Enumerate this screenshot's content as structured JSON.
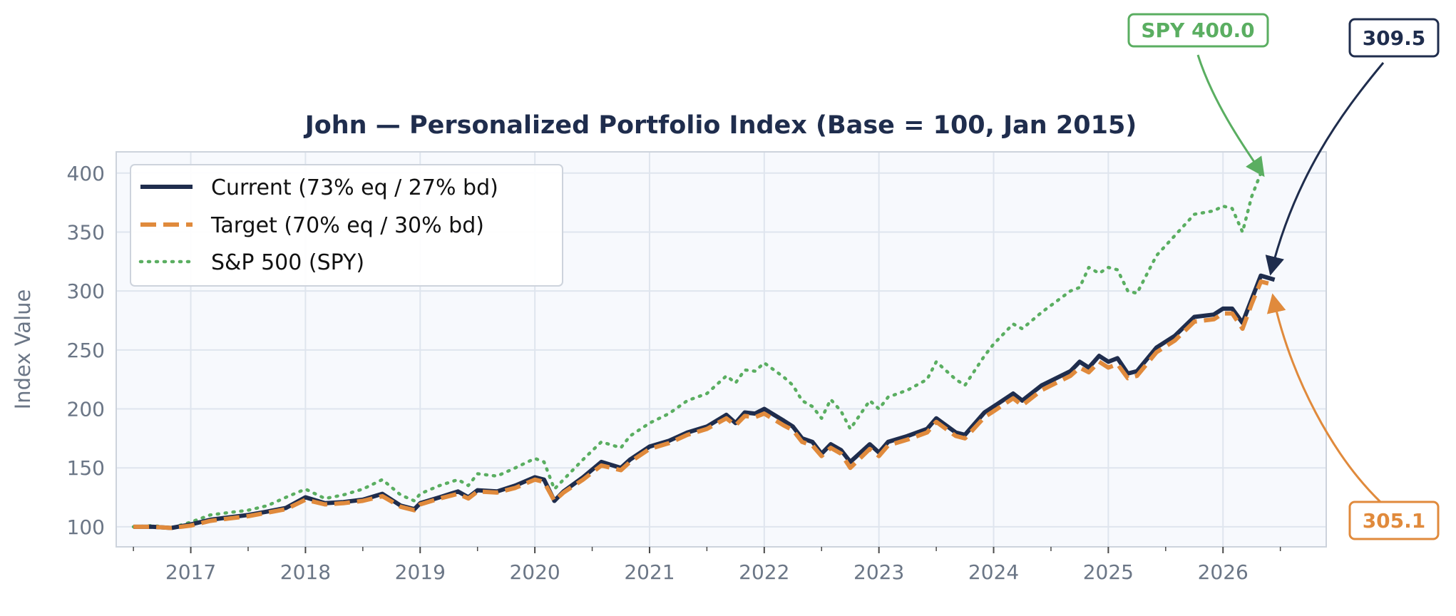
{
  "chart_data": {
    "type": "line",
    "title": "John — Personalized Portfolio Index  (Base = 100, Jan 2015)",
    "xlabel": "",
    "ylabel": "Index Value",
    "xlim": [
      2016.35,
      2026.9
    ],
    "ylim": [
      83,
      418
    ],
    "x_ticks": [
      {
        "label": "2017",
        "value": 2017
      },
      {
        "label": "2018",
        "value": 2018
      },
      {
        "label": "2019",
        "value": 2019
      },
      {
        "label": "2020",
        "value": 2020
      },
      {
        "label": "2021",
        "value": 2021
      },
      {
        "label": "2022",
        "value": 2022
      },
      {
        "label": "2023",
        "value": 2023
      },
      {
        "label": "2024",
        "value": 2024
      },
      {
        "label": "2025",
        "value": 2025
      },
      {
        "label": "2026",
        "value": 2026
      }
    ],
    "y_ticks": [
      {
        "label": "100",
        "value": 100
      },
      {
        "label": "150",
        "value": 150
      },
      {
        "label": "200",
        "value": 200
      },
      {
        "label": "250",
        "value": 250
      },
      {
        "label": "300",
        "value": 300
      },
      {
        "label": "350",
        "value": 350
      },
      {
        "label": "400",
        "value": 400
      }
    ],
    "grid": true,
    "legend_position": "top-left",
    "series": [
      {
        "name": "Current (73% eq / 27% bd)",
        "color": "#1f2d4d",
        "style": "solid",
        "points": [
          [
            2016.5,
            100
          ],
          [
            2016.67,
            100
          ],
          [
            2016.83,
            99
          ],
          [
            2017.0,
            102
          ],
          [
            2017.17,
            106
          ],
          [
            2017.33,
            108
          ],
          [
            2017.5,
            110
          ],
          [
            2017.67,
            113
          ],
          [
            2017.83,
            116
          ],
          [
            2018.0,
            125
          ],
          [
            2018.17,
            120
          ],
          [
            2018.33,
            121
          ],
          [
            2018.5,
            123
          ],
          [
            2018.67,
            128
          ],
          [
            2018.83,
            118
          ],
          [
            2018.95,
            115
          ],
          [
            2019.0,
            120
          ],
          [
            2019.17,
            125
          ],
          [
            2019.33,
            130
          ],
          [
            2019.42,
            125
          ],
          [
            2019.5,
            131
          ],
          [
            2019.67,
            130
          ],
          [
            2019.83,
            135
          ],
          [
            2020.0,
            142
          ],
          [
            2020.08,
            140
          ],
          [
            2020.17,
            122
          ],
          [
            2020.25,
            130
          ],
          [
            2020.42,
            142
          ],
          [
            2020.58,
            155
          ],
          [
            2020.75,
            150
          ],
          [
            2020.83,
            157
          ],
          [
            2021.0,
            168
          ],
          [
            2021.17,
            173
          ],
          [
            2021.33,
            180
          ],
          [
            2021.5,
            185
          ],
          [
            2021.67,
            195
          ],
          [
            2021.75,
            188
          ],
          [
            2021.83,
            197
          ],
          [
            2021.92,
            196
          ],
          [
            2022.0,
            200
          ],
          [
            2022.17,
            190
          ],
          [
            2022.25,
            185
          ],
          [
            2022.33,
            175
          ],
          [
            2022.42,
            172
          ],
          [
            2022.5,
            162
          ],
          [
            2022.58,
            170
          ],
          [
            2022.67,
            165
          ],
          [
            2022.75,
            155
          ],
          [
            2022.92,
            170
          ],
          [
            2023.0,
            163
          ],
          [
            2023.08,
            172
          ],
          [
            2023.25,
            177
          ],
          [
            2023.42,
            183
          ],
          [
            2023.5,
            192
          ],
          [
            2023.67,
            180
          ],
          [
            2023.75,
            178
          ],
          [
            2023.92,
            197
          ],
          [
            2024.0,
            202
          ],
          [
            2024.17,
            213
          ],
          [
            2024.25,
            207
          ],
          [
            2024.42,
            220
          ],
          [
            2024.67,
            232
          ],
          [
            2024.75,
            240
          ],
          [
            2024.83,
            235
          ],
          [
            2024.92,
            245
          ],
          [
            2025.0,
            240
          ],
          [
            2025.08,
            243
          ],
          [
            2025.17,
            230
          ],
          [
            2025.25,
            232
          ],
          [
            2025.42,
            252
          ],
          [
            2025.58,
            262
          ],
          [
            2025.75,
            278
          ],
          [
            2025.92,
            280
          ],
          [
            2026.0,
            285
          ],
          [
            2026.08,
            285
          ],
          [
            2026.17,
            273
          ],
          [
            2026.25,
            293
          ],
          [
            2026.33,
            313
          ],
          [
            2026.45,
            309.5
          ]
        ]
      },
      {
        "name": "Target  (70% eq / 30% bd)",
        "color": "#e08a3c",
        "style": "dashed",
        "points": [
          [
            2016.5,
            100
          ],
          [
            2016.67,
            100
          ],
          [
            2016.83,
            99
          ],
          [
            2017.0,
            101
          ],
          [
            2017.17,
            105
          ],
          [
            2017.33,
            107
          ],
          [
            2017.5,
            109
          ],
          [
            2017.67,
            112
          ],
          [
            2017.83,
            115
          ],
          [
            2018.0,
            123
          ],
          [
            2018.17,
            119
          ],
          [
            2018.33,
            120
          ],
          [
            2018.5,
            122
          ],
          [
            2018.67,
            126
          ],
          [
            2018.83,
            117
          ],
          [
            2018.95,
            114
          ],
          [
            2019.0,
            119
          ],
          [
            2019.17,
            124
          ],
          [
            2019.33,
            128
          ],
          [
            2019.42,
            124
          ],
          [
            2019.5,
            130
          ],
          [
            2019.67,
            129
          ],
          [
            2019.83,
            133
          ],
          [
            2020.0,
            140
          ],
          [
            2020.08,
            138
          ],
          [
            2020.17,
            122
          ],
          [
            2020.25,
            129
          ],
          [
            2020.42,
            140
          ],
          [
            2020.58,
            152
          ],
          [
            2020.75,
            148
          ],
          [
            2020.83,
            155
          ],
          [
            2021.0,
            166
          ],
          [
            2021.17,
            171
          ],
          [
            2021.33,
            178
          ],
          [
            2021.5,
            183
          ],
          [
            2021.67,
            192
          ],
          [
            2021.75,
            186
          ],
          [
            2021.83,
            194
          ],
          [
            2021.92,
            193
          ],
          [
            2022.0,
            196
          ],
          [
            2022.17,
            186
          ],
          [
            2022.25,
            182
          ],
          [
            2022.33,
            172
          ],
          [
            2022.42,
            169
          ],
          [
            2022.5,
            160
          ],
          [
            2022.58,
            167
          ],
          [
            2022.67,
            162
          ],
          [
            2022.75,
            150
          ],
          [
            2022.92,
            166
          ],
          [
            2023.0,
            160
          ],
          [
            2023.08,
            169
          ],
          [
            2023.25,
            174
          ],
          [
            2023.42,
            180
          ],
          [
            2023.5,
            189
          ],
          [
            2023.67,
            177
          ],
          [
            2023.75,
            175
          ],
          [
            2023.92,
            193
          ],
          [
            2024.0,
            198
          ],
          [
            2024.17,
            209
          ],
          [
            2024.25,
            203
          ],
          [
            2024.42,
            216
          ],
          [
            2024.67,
            228
          ],
          [
            2024.75,
            235
          ],
          [
            2024.83,
            231
          ],
          [
            2024.92,
            240
          ],
          [
            2025.0,
            235
          ],
          [
            2025.08,
            238
          ],
          [
            2025.17,
            226
          ],
          [
            2025.25,
            228
          ],
          [
            2025.42,
            248
          ],
          [
            2025.58,
            258
          ],
          [
            2025.75,
            274
          ],
          [
            2025.92,
            276
          ],
          [
            2026.0,
            281
          ],
          [
            2026.08,
            281
          ],
          [
            2026.17,
            268
          ],
          [
            2026.25,
            289
          ],
          [
            2026.33,
            308
          ],
          [
            2026.45,
            305.1
          ]
        ]
      },
      {
        "name": "S&P 500 (SPY)",
        "color": "#5aae61",
        "style": "dotted",
        "points": [
          [
            2016.5,
            100
          ],
          [
            2016.67,
            101
          ],
          [
            2016.83,
            99
          ],
          [
            2017.0,
            104
          ],
          [
            2017.17,
            110
          ],
          [
            2017.33,
            112
          ],
          [
            2017.5,
            114
          ],
          [
            2017.67,
            118
          ],
          [
            2017.83,
            125
          ],
          [
            2018.0,
            132
          ],
          [
            2018.17,
            124
          ],
          [
            2018.33,
            127
          ],
          [
            2018.5,
            132
          ],
          [
            2018.67,
            140
          ],
          [
            2018.83,
            127
          ],
          [
            2018.95,
            122
          ],
          [
            2019.0,
            128
          ],
          [
            2019.17,
            135
          ],
          [
            2019.33,
            140
          ],
          [
            2019.42,
            135
          ],
          [
            2019.5,
            145
          ],
          [
            2019.67,
            143
          ],
          [
            2019.83,
            150
          ],
          [
            2020.0,
            158
          ],
          [
            2020.08,
            155
          ],
          [
            2020.17,
            132
          ],
          [
            2020.25,
            140
          ],
          [
            2020.42,
            157
          ],
          [
            2020.58,
            172
          ],
          [
            2020.75,
            167
          ],
          [
            2020.83,
            177
          ],
          [
            2021.0,
            188
          ],
          [
            2021.17,
            196
          ],
          [
            2021.33,
            207
          ],
          [
            2021.5,
            213
          ],
          [
            2021.67,
            228
          ],
          [
            2021.75,
            222
          ],
          [
            2021.83,
            233
          ],
          [
            2021.92,
            232
          ],
          [
            2022.0,
            239
          ],
          [
            2022.17,
            227
          ],
          [
            2022.25,
            220
          ],
          [
            2022.33,
            207
          ],
          [
            2022.42,
            202
          ],
          [
            2022.5,
            192
          ],
          [
            2022.58,
            208
          ],
          [
            2022.67,
            198
          ],
          [
            2022.75,
            183
          ],
          [
            2022.92,
            207
          ],
          [
            2023.0,
            200
          ],
          [
            2023.08,
            210
          ],
          [
            2023.25,
            216
          ],
          [
            2023.42,
            225
          ],
          [
            2023.5,
            240
          ],
          [
            2023.67,
            225
          ],
          [
            2023.75,
            220
          ],
          [
            2023.92,
            245
          ],
          [
            2024.0,
            255
          ],
          [
            2024.17,
            272
          ],
          [
            2024.25,
            268
          ],
          [
            2024.42,
            282
          ],
          [
            2024.67,
            300
          ],
          [
            2024.75,
            303
          ],
          [
            2024.83,
            320
          ],
          [
            2024.92,
            315
          ],
          [
            2025.0,
            320
          ],
          [
            2025.08,
            318
          ],
          [
            2025.17,
            300
          ],
          [
            2025.25,
            298
          ],
          [
            2025.42,
            330
          ],
          [
            2025.58,
            347
          ],
          [
            2025.75,
            365
          ],
          [
            2025.92,
            368
          ],
          [
            2026.0,
            372
          ],
          [
            2026.08,
            370
          ],
          [
            2026.17,
            350
          ],
          [
            2026.25,
            380
          ],
          [
            2026.33,
            400
          ]
        ]
      }
    ],
    "annotations": [
      {
        "text": "SPY 400.0",
        "color": "#5aae61",
        "target": [
          2026.33,
          400
        ]
      },
      {
        "text": "309.5",
        "color": "#1f2d4d",
        "target": [
          2026.45,
          309.5
        ]
      },
      {
        "text": "305.1",
        "color": "#e08a3c",
        "target": [
          2026.45,
          305.1
        ]
      }
    ]
  }
}
